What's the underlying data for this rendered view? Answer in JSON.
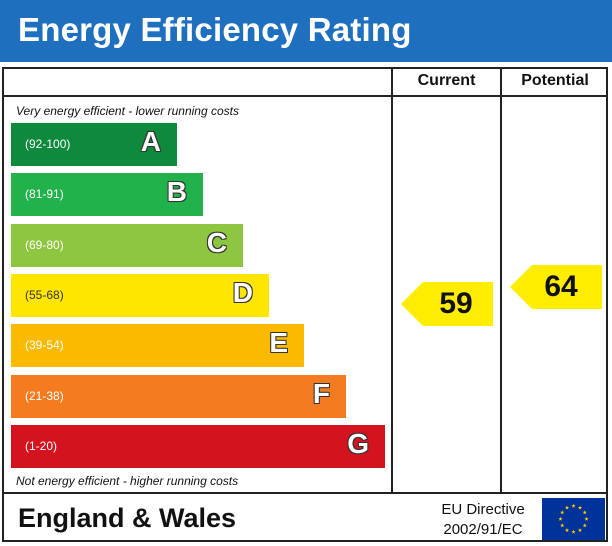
{
  "header": {
    "title": "Energy Efficiency Rating"
  },
  "columns": {
    "current": "Current",
    "potential": "Potential"
  },
  "notes": {
    "top": "Very energy efficient - lower running costs",
    "bottom": "Not energy efficient - higher running costs"
  },
  "footer": {
    "region": "England & Wales",
    "directive_line1": "EU Directive",
    "directive_line2": "2002/91/EC"
  },
  "chart_data": {
    "type": "bar",
    "title": "Energy Efficiency Rating",
    "categories": [
      "A",
      "B",
      "C",
      "D",
      "E",
      "F",
      "G"
    ],
    "ranges": [
      "(92-100)",
      "(81-91)",
      "(69-80)",
      "(55-68)",
      "(39-54)",
      "(21-38)",
      "(1-20)"
    ],
    "colors": [
      "#0f8a3c",
      "#21b24b",
      "#8dc63f",
      "#ffe600",
      "#fbb900",
      "#f47b20",
      "#d3131e"
    ],
    "current": 59,
    "potential": 64,
    "current_band": "D",
    "potential_band": "D",
    "arrow_color": "#ffed00"
  }
}
